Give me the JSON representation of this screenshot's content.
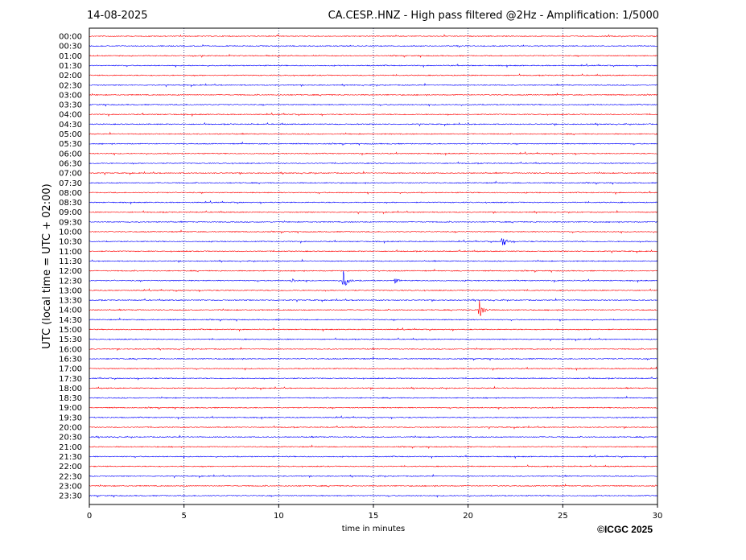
{
  "date": "14-08-2025",
  "title": "CA.CESP..HNZ - High pass filtered @2Hz - Amplification: 1/5000",
  "credit": "©ICGC 2025",
  "colors": {
    "odd": "#0000ff",
    "even": "#ff0000",
    "grid": "#1f2a7a"
  },
  "chart_data": {
    "type": "line",
    "xlabel": "time in minutes",
    "ylabel": "UTC (local time = UTC + 02:00)",
    "xlim": [
      0,
      30
    ],
    "x_ticks": [
      0,
      5,
      10,
      15,
      20,
      25,
      30
    ],
    "grid": "vertical dotted at each x tick",
    "row_labels": [
      "00:00",
      "00:30",
      "01:00",
      "01:30",
      "02:00",
      "02:30",
      "03:00",
      "03:30",
      "04:00",
      "04:30",
      "05:00",
      "05:30",
      "06:00",
      "06:30",
      "07:00",
      "07:30",
      "08:00",
      "08:30",
      "09:00",
      "09:30",
      "10:00",
      "10:30",
      "11:00",
      "11:30",
      "12:00",
      "12:30",
      "13:00",
      "13:30",
      "14:00",
      "14:30",
      "15:00",
      "15:30",
      "16:00",
      "16:30",
      "17:00",
      "17:30",
      "18:00",
      "18:30",
      "19:00",
      "19:30",
      "20:00",
      "20:30",
      "21:00",
      "21:30",
      "22:00",
      "22:30",
      "23:00",
      "23:30"
    ],
    "events": [
      {
        "row": "10:30",
        "minute": 21.8,
        "amplitude": 0.6
      },
      {
        "row": "12:30",
        "minute": 13.4,
        "amplitude": 0.9
      },
      {
        "row": "12:30",
        "minute": 10.7,
        "amplitude": 0.2
      },
      {
        "row": "12:30",
        "minute": 16.1,
        "amplitude": 0.25
      },
      {
        "row": "14:00",
        "minute": 20.6,
        "amplitude": 1.0
      }
    ]
  }
}
